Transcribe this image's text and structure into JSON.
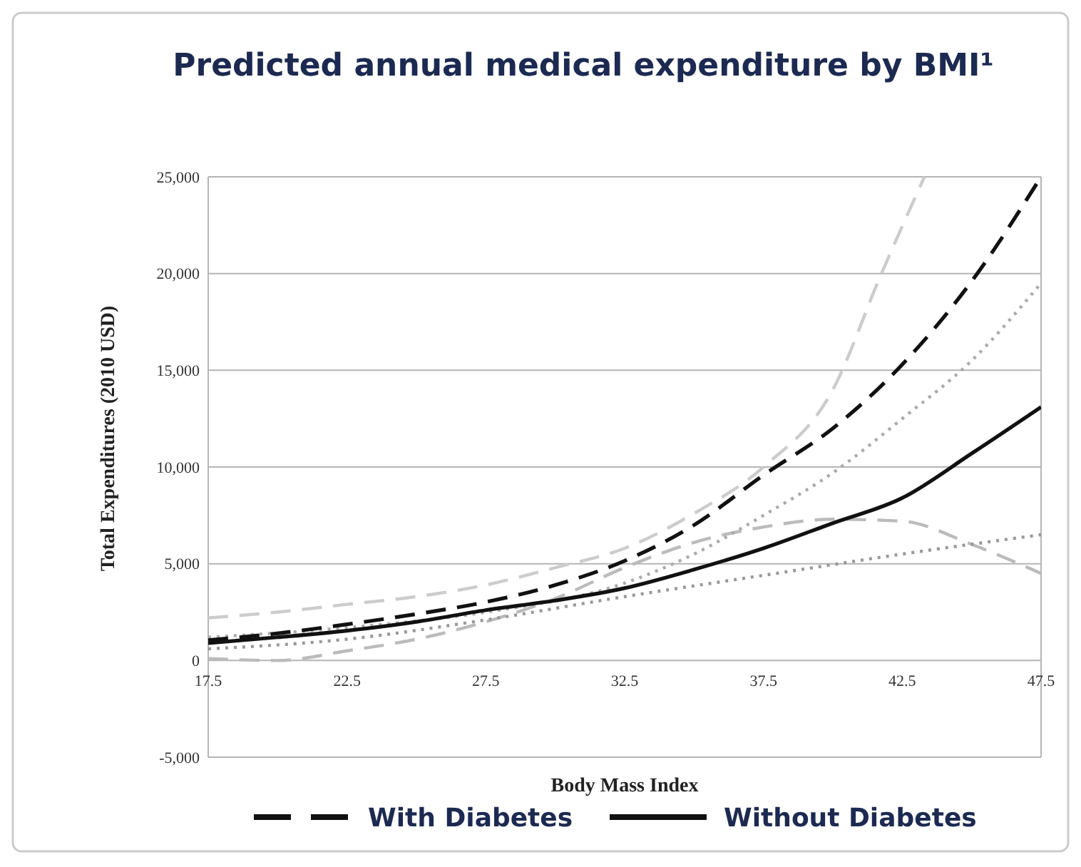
{
  "chart_data": {
    "type": "line",
    "title": "Predicted annual medical expenditure by BMI¹",
    "xlabel": "Body Mass Index",
    "ylabel": "Total Expenditures (2010 USD)",
    "xlim": [
      17.5,
      47.5
    ],
    "xticks": [
      17.5,
      22.5,
      27.5,
      32.5,
      37.5,
      42.5,
      47.5
    ],
    "ylim": [
      -5000,
      25000
    ],
    "yticks": [
      {
        "value": -5000,
        "label": "-5,000"
      },
      0,
      {
        "value": 5000,
        "label": "5,000"
      },
      {
        "value": 10000,
        "label": "10,000"
      },
      {
        "value": 15000,
        "label": "15,000"
      },
      {
        "value": 20000,
        "label": "20,000"
      },
      {
        "value": 25000,
        "label": "25,000"
      }
    ],
    "grid": "y",
    "legend": "bottom",
    "marker": "none",
    "series": [
      {
        "color": "#cccccc",
        "line_style": "dashed",
        "x": [
          17.5,
          20,
          22.5,
          25,
          27.5,
          30,
          32.5,
          35,
          37.5,
          40,
          41.75,
          43.3
        ],
        "values": [
          2200,
          2500,
          2900,
          3300,
          3900,
          4800,
          5800,
          7600,
          10000,
          14000,
          20000,
          25000
        ]
      },
      {
        "color": "#bbbbbb",
        "line_style": "dashed",
        "x": [
          17.5,
          20,
          22.5,
          25,
          27.5,
          30,
          32.5,
          35,
          37.5,
          40,
          42.5,
          45,
          47.5
        ],
        "values": [
          100,
          0,
          500,
          1100,
          2000,
          3200,
          4800,
          6100,
          6900,
          7300,
          7200,
          6000,
          4500
        ]
      },
      {
        "color": "#aaaaaa",
        "line_style": "dotted",
        "x": [
          17.5,
          22.5,
          27.5,
          32.5,
          35,
          37.5,
          40,
          42.5,
          45,
          47.5
        ],
        "values": [
          1200,
          1700,
          2500,
          4000,
          5500,
          7500,
          9700,
          12500,
          15500,
          19500
        ]
      },
      {
        "color": "#999999",
        "line_style": "dotted",
        "x": [
          17.5,
          22.5,
          27.5,
          32.5,
          37.5,
          42.5,
          47.5
        ],
        "values": [
          600,
          1100,
          2100,
          3300,
          4400,
          5500,
          6500
        ]
      },
      {
        "name": "With Diabetes",
        "color": "#111111",
        "line_style": "dashed",
        "x": [
          17.5,
          20,
          22.5,
          25,
          27.5,
          30,
          32.5,
          35,
          37.5,
          40,
          42.5,
          45,
          47.5
        ],
        "values": [
          1050,
          1400,
          1870,
          2400,
          3020,
          3900,
          5150,
          7000,
          9580,
          12000,
          15300,
          19600,
          25000
        ]
      },
      {
        "name": "Without Diabetes",
        "color": "#111111",
        "line_style": "solid",
        "x": [
          17.5,
          20,
          22.5,
          25,
          27.5,
          30,
          32.5,
          35,
          37.5,
          40,
          42.5,
          45,
          47.5
        ],
        "values": [
          900,
          1200,
          1540,
          2000,
          2600,
          3100,
          3740,
          4700,
          5800,
          7100,
          8400,
          10700,
          13100
        ]
      }
    ]
  }
}
